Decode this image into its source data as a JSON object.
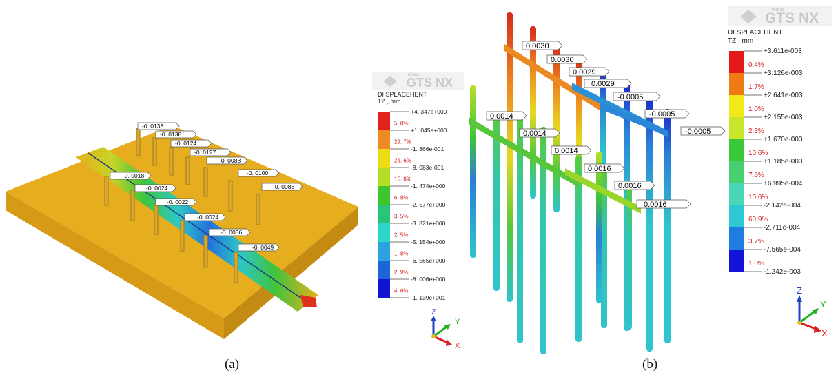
{
  "panel_a": {
    "caption": "(a)",
    "brand": "GTS NX",
    "brand_small": "midas",
    "legend_title": "DI SPLACEHENT",
    "legend_unit": "TZ , mm",
    "legend_values": [
      "+4. 347e+000",
      "+1. 045e+000",
      "-1. 866e-001",
      "-8. 083e-001",
      "-1. 474e+000",
      "-2. 577e+000",
      "-3. 821e+000",
      "-5. 154e+000",
      "-6. 565e+000",
      "-8. 006e+000",
      "-1. 139e+001"
    ],
    "legend_percents": [
      "5. 8%",
      "29. 7%",
      "26. 6%",
      "15. 8%",
      "6. 8%",
      "3. 5%",
      "2. 5%",
      "1. 8%",
      "2. 9%",
      "4. 6%"
    ],
    "legend_colors": [
      "#e0211c",
      "#f08a25",
      "#ecdc12",
      "#b5de25",
      "#3ec62e",
      "#28c47a",
      "#2ed6c8",
      "#2aa3e0",
      "#1c64d8",
      "#1414d0"
    ],
    "labels": [
      "-0. 0138",
      "-0. 0138",
      "-0. 0124",
      "-0. 0127",
      "-0. 0088",
      "-0. 0100",
      "-0. 0088",
      "-0. 0018",
      "-0. 0024",
      "-0. 0022",
      "-0. 0024",
      "-0. 0036",
      "-0. 0049"
    ],
    "axes": {
      "z": "Z",
      "y": "Y",
      "x": "X"
    }
  },
  "panel_b": {
    "caption": "(b)",
    "brand": "GTS NX",
    "brand_small": "midas",
    "legend_title": "DI SPLACEHENT",
    "legend_unit": "TZ , mm",
    "legend_values": [
      "+3.611e-003",
      "+3.126e-003",
      "+2.641e-003",
      "+2.155e-003",
      "+1.670e-003",
      "+1.185e-003",
      "+6.995e-004",
      "-2.142e-004",
      "-2.711e-004",
      "-7.565e-004",
      "-1.242e-003"
    ],
    "legend_percents": [
      "0.4%",
      "1.7%",
      "1.0%",
      "2.3%",
      "10.6%",
      "7.6%",
      "10.6%",
      "60.9%",
      "3.7%",
      "1.0%"
    ],
    "legend_colors": [
      "#e41a1a",
      "#f07a14",
      "#f2ea18",
      "#c8e62a",
      "#38c838",
      "#48d070",
      "#48d8b8",
      "#2ec8d0",
      "#1e7ee0",
      "#1212d8"
    ],
    "labels": [
      "0.0030",
      "0.0030",
      "0.0029",
      "0.0029",
      "-0.0005",
      "-0.0005",
      "-0.0005",
      "0.0014",
      "0.0014",
      "0.0014",
      "0.0016",
      "0.0016",
      "0.0016"
    ],
    "axes": {
      "z": "Z",
      "y": "Y",
      "x": "X"
    }
  }
}
